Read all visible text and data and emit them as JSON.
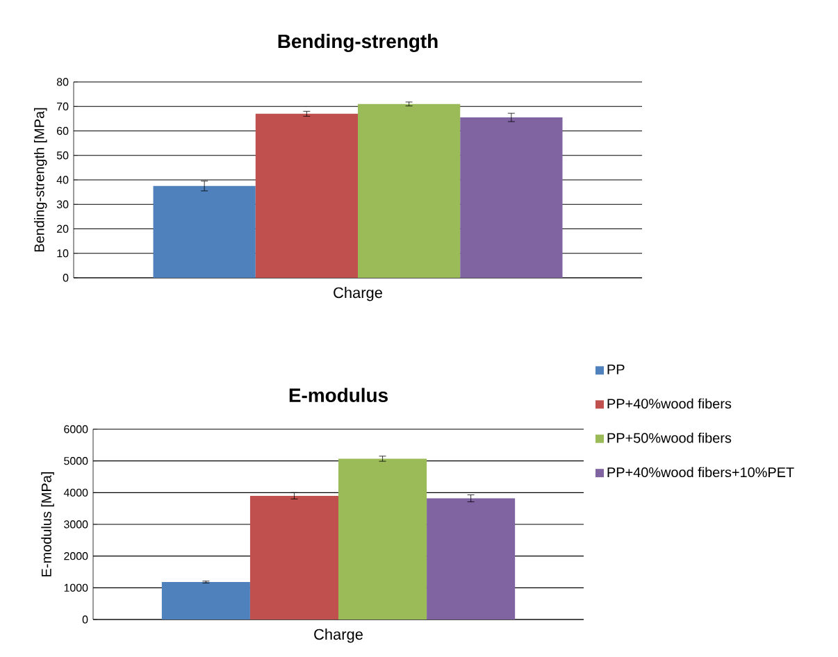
{
  "chart_data": [
    {
      "type": "bar",
      "title": "Bending-strength",
      "ylabel": "Bending-strength [MPa]",
      "categories": [
        "Charge"
      ],
      "grid": "y",
      "ylim": [
        0,
        80
      ],
      "yticks": [
        0,
        10,
        20,
        30,
        40,
        50,
        60,
        70,
        80
      ],
      "series": [
        {
          "color": "#4f81bd",
          "values": [
            37.5
          ],
          "errors": [
            2
          ]
        },
        {
          "color": "#c0504d",
          "values": [
            67
          ],
          "errors": [
            1
          ]
        },
        {
          "color": "#9bbb59",
          "values": [
            71
          ],
          "errors": [
            0.8
          ]
        },
        {
          "color": "#8064a2",
          "values": [
            65.5
          ],
          "errors": [
            1.7
          ]
        }
      ]
    },
    {
      "type": "bar",
      "title": "E-modulus",
      "ylabel": "E-modulus [MPa]",
      "categories": [
        "Charge"
      ],
      "grid": "y",
      "legend": "right",
      "ylim": [
        0,
        6000
      ],
      "yticks": [
        0,
        1000,
        2000,
        3000,
        4000,
        5000,
        6000
      ],
      "series": [
        {
          "name": "PP",
          "color": "#4f81bd",
          "values": [
            1180
          ],
          "errors": [
            30
          ]
        },
        {
          "name": "PP+40%wood fibers",
          "color": "#c0504d",
          "values": [
            3900
          ],
          "errors": [
            100
          ]
        },
        {
          "name": "PP+50%wood fibers",
          "color": "#9bbb59",
          "values": [
            5070
          ],
          "errors": [
            80
          ]
        },
        {
          "name": "PP+40%wood fibers+10%PET",
          "color": "#8064a2",
          "values": [
            3820
          ],
          "errors": [
            110
          ]
        }
      ]
    }
  ]
}
